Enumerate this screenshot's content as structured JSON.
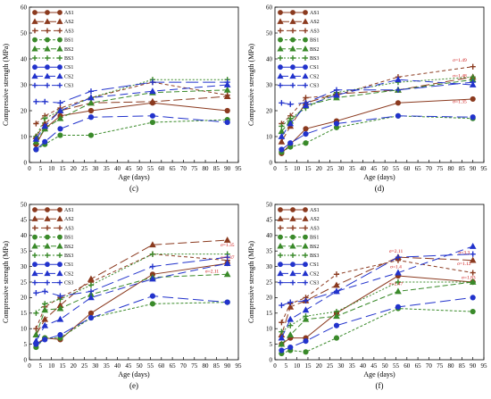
{
  "chart_data": [
    {
      "type": "line",
      "panel_label": "(c)",
      "xlabel": "Age (days)",
      "ylabel": "Compressive strength (MPa)",
      "xlim": [
        0,
        95
      ],
      "ylim": [
        0,
        60
      ],
      "xticks": [
        0,
        5,
        10,
        15,
        20,
        25,
        30,
        35,
        40,
        45,
        50,
        55,
        60,
        65,
        70,
        75,
        80,
        85,
        90,
        95
      ],
      "yticks": [
        0,
        10,
        20,
        30,
        40,
        50,
        60
      ],
      "x": [
        3,
        7,
        14,
        28,
        56,
        90
      ],
      "legend_position": "top-left",
      "series": [
        {
          "name": "AS1",
          "values": [
            7,
            13,
            18,
            20,
            23,
            20
          ]
        },
        {
          "name": "AS2",
          "values": [
            10,
            15,
            20,
            23,
            23.5,
            25.5
          ]
        },
        {
          "name": "AS3",
          "values": [
            15,
            18,
            21,
            25,
            31,
            26
          ]
        },
        {
          "name": "BS1",
          "values": [
            5,
            7,
            10.5,
            10.5,
            15.5,
            16.5
          ]
        },
        {
          "name": "BS2",
          "values": [
            8,
            13,
            17,
            23,
            27,
            28
          ]
        },
        {
          "name": "BS3",
          "values": [
            10,
            17,
            20,
            25,
            32,
            32
          ]
        },
        {
          "name": "CS1",
          "values": [
            5,
            8,
            13,
            17.5,
            18,
            15.5
          ]
        },
        {
          "name": "CS2",
          "values": [
            9,
            14,
            20,
            25,
            27.5,
            30
          ]
        },
        {
          "name": "CS3",
          "values": [
            23.5,
            23.5,
            23,
            27.5,
            31,
            31
          ]
        }
      ],
      "annotations": []
    },
    {
      "type": "line",
      "panel_label": "(d)",
      "xlabel": "Age (days)",
      "ylabel": "Compressive strength (MPa)",
      "xlim": [
        0,
        95
      ],
      "ylim": [
        0,
        60
      ],
      "xticks": [
        0,
        5,
        10,
        15,
        20,
        25,
        30,
        35,
        40,
        45,
        50,
        55,
        60,
        65,
        70,
        75,
        80,
        85,
        90,
        95
      ],
      "yticks": [
        0,
        10,
        20,
        30,
        40,
        50,
        60
      ],
      "x": [
        3,
        7,
        14,
        28,
        56,
        90
      ],
      "legend_position": "top-left",
      "series": [
        {
          "name": "AS1",
          "values": [
            3.5,
            7,
            13,
            16,
            23,
            24.5
          ]
        },
        {
          "name": "AS2",
          "values": [
            8,
            14,
            23,
            26.5,
            28,
            33
          ]
        },
        {
          "name": "AS3",
          "values": [
            15,
            18,
            25,
            26,
            33,
            37
          ]
        },
        {
          "name": "BS1",
          "values": [
            4,
            6,
            7.5,
            13.5,
            18,
            17
          ]
        },
        {
          "name": "BS2",
          "values": [
            12,
            16,
            22,
            25,
            28,
            32
          ]
        },
        {
          "name": "BS3",
          "values": [
            14,
            17,
            21,
            27,
            31,
            33
          ]
        },
        {
          "name": "CS1",
          "values": [
            5,
            7.5,
            11,
            15,
            18,
            17.5
          ]
        },
        {
          "name": "CS2",
          "values": [
            10,
            15,
            22,
            26,
            32,
            30
          ]
        },
        {
          "name": "CS3",
          "values": [
            23,
            22.5,
            23,
            28,
            28,
            31
          ]
        }
      ],
      "annotations": [
        {
          "text": "σ=1.49",
          "x": 84,
          "y": 39
        },
        {
          "text": "σ=1.48",
          "x": 84,
          "y": 33
        },
        {
          "text": "σ=1.35",
          "x": 84,
          "y": 23
        }
      ]
    },
    {
      "type": "line",
      "panel_label": "(e)",
      "xlabel": "Age (days)",
      "ylabel": "Compressive strength (MPa)",
      "xlim": [
        0,
        95
      ],
      "ylim": [
        0,
        50
      ],
      "xticks": [
        0,
        5,
        10,
        15,
        20,
        25,
        30,
        35,
        40,
        45,
        50,
        55,
        60,
        65,
        70,
        75,
        80,
        85,
        90,
        95
      ],
      "yticks": [
        0,
        5,
        10,
        15,
        20,
        25,
        30,
        35,
        40,
        45,
        50
      ],
      "x": [
        3,
        7,
        14,
        28,
        56,
        90
      ],
      "legend_position": "top-left",
      "series": [
        {
          "name": "AS1",
          "values": [
            5,
            7,
            6.5,
            15,
            27.5,
            31
          ]
        },
        {
          "name": "AS2",
          "values": [
            8,
            13,
            17.5,
            26,
            37,
            38.5
          ]
        },
        {
          "name": "AS3",
          "values": [
            10,
            17,
            20,
            25,
            34,
            32
          ]
        },
        {
          "name": "BS1",
          "values": [
            4,
            7,
            7,
            13.5,
            18,
            18.5
          ]
        },
        {
          "name": "BS2",
          "values": [
            8,
            16,
            16.5,
            21,
            26.5,
            27.5
          ]
        },
        {
          "name": "BS3",
          "values": [
            15,
            18,
            19.5,
            24,
            34,
            34
          ]
        },
        {
          "name": "CS1",
          "values": [
            5,
            6.5,
            8,
            13.5,
            20.5,
            18.5
          ]
        },
        {
          "name": "CS2",
          "values": [
            6,
            11,
            13,
            20,
            26,
            31
          ]
        },
        {
          "name": "CS3",
          "values": [
            21.5,
            22,
            20.5,
            22,
            30,
            33
          ]
        }
      ],
      "annotations": [
        {
          "text": "σ=1.35",
          "x": 90,
          "y": 36.5
        },
        {
          "text": "σ=1.37",
          "x": 90,
          "y": 32.5
        },
        {
          "text": "σ=2.11",
          "x": 83,
          "y": 28
        }
      ]
    },
    {
      "type": "line",
      "panel_label": "(f)",
      "xlabel": "Age (days)",
      "ylabel": "Compressive strength (MPa)",
      "xlim": [
        0,
        95
      ],
      "ylim": [
        0,
        50
      ],
      "xticks": [
        0,
        5,
        10,
        15,
        20,
        25,
        30,
        35,
        40,
        45,
        50,
        55,
        60,
        65,
        70,
        75,
        80,
        85,
        90,
        95
      ],
      "yticks": [
        0,
        5,
        10,
        15,
        20,
        25,
        30,
        35,
        40,
        45,
        50
      ],
      "x": [
        3,
        7,
        14,
        28,
        56,
        90
      ],
      "legend_position": "top-left",
      "series": [
        {
          "name": "AS1",
          "values": [
            5,
            7,
            7,
            15,
            27,
            25
          ]
        },
        {
          "name": "AS2",
          "values": [
            8,
            17,
            19,
            24,
            33,
            32
          ]
        },
        {
          "name": "AS3",
          "values": [
            12,
            18,
            20,
            27.5,
            32,
            28
          ]
        },
        {
          "name": "BS1",
          "values": [
            2,
            3,
            2.5,
            7,
            16.5,
            15.5
          ]
        },
        {
          "name": "BS2",
          "values": [
            5,
            8,
            13,
            14,
            22,
            25
          ]
        },
        {
          "name": "BS3",
          "values": [
            9,
            11,
            14,
            15.5,
            25,
            25
          ]
        },
        {
          "name": "CS1",
          "values": [
            3,
            4,
            6,
            11,
            17,
            20
          ]
        },
        {
          "name": "CS2",
          "values": [
            7,
            13,
            16,
            22,
            28,
            36.5
          ]
        },
        {
          "name": "CS3",
          "values": [
            17.5,
            18.5,
            19,
            22,
            33,
            34
          ]
        }
      ],
      "annotations": [
        {
          "text": "σ=2.11",
          "x": 55,
          "y": 34.5
        },
        {
          "text": "σ=1.4",
          "x": 55,
          "y": 29.5
        },
        {
          "text": "σ=2.47",
          "x": 55,
          "y": 24
        },
        {
          "text": "σ=3.3",
          "x": 86,
          "y": 34
        },
        {
          "text": "σ=1.12",
          "x": 86,
          "y": 30.5
        },
        {
          "text": "σ=1.83",
          "x": 88,
          "y": 26
        }
      ]
    }
  ],
  "series_styles": [
    {
      "name": "AS1",
      "color": "#8b3a1f",
      "marker": "circle",
      "dash": ""
    },
    {
      "name": "AS2",
      "color": "#8b3a1f",
      "marker": "triangle",
      "dash": "10 4"
    },
    {
      "name": "AS3",
      "color": "#8b3a1f",
      "marker": "plus",
      "dash": "4 3"
    },
    {
      "name": "BS1",
      "color": "#3a8a2a",
      "marker": "circle",
      "dash": "3 2"
    },
    {
      "name": "BS2",
      "color": "#3a8a2a",
      "marker": "triangle",
      "dash": "6 3"
    },
    {
      "name": "BS3",
      "color": "#3a8a2a",
      "marker": "plus",
      "dash": "2 2"
    },
    {
      "name": "CS1",
      "color": "#2233cc",
      "marker": "circle",
      "dash": "12 5"
    },
    {
      "name": "CS2",
      "color": "#2233cc",
      "marker": "triangle",
      "dash": "9 5"
    },
    {
      "name": "CS3",
      "color": "#2233cc",
      "marker": "plus",
      "dash": "14 5"
    }
  ],
  "annotation_color": "#cc1111"
}
